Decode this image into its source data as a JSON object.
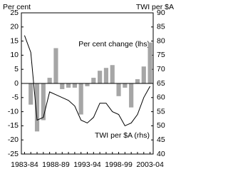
{
  "chart_data": {
    "type": "bar-line",
    "y_label": "Per cent",
    "y2_label": "TWI per $A",
    "categories": [
      "1983-84",
      null,
      null,
      null,
      null,
      "1988-89",
      null,
      null,
      null,
      null,
      "1993-94",
      null,
      null,
      null,
      null,
      "1998-99",
      null,
      null,
      null,
      null,
      "2003-04"
    ],
    "series": [
      {
        "name": "Per cent change (lhs)",
        "type": "bar",
        "color": "#a6a6a6",
        "values": [
          null,
          -7.5,
          -17,
          -13,
          2,
          12.5,
          -2,
          -1.5,
          -1.5,
          -11,
          -1,
          2,
          4.5,
          5.5,
          6.5,
          -4.5,
          -1.5,
          -8.5,
          1.5,
          6,
          14.5
        ]
      },
      {
        "name": "TWI per $A (rhs)",
        "type": "line",
        "axis": "y2",
        "color": "#000000",
        "values": [
          82,
          76,
          52,
          53,
          62,
          61,
          60,
          59,
          57,
          52,
          51,
          53,
          58,
          58,
          55,
          54,
          50,
          51,
          54,
          60,
          64
        ]
      }
    ],
    "ylim": [
      -25,
      25
    ],
    "yticks": [
      -25,
      -20,
      -15,
      -10,
      -5,
      0,
      5,
      10,
      15,
      20,
      25
    ],
    "y2lim": [
      40,
      90
    ],
    "y2ticks": [
      40,
      45,
      50,
      55,
      60,
      65,
      70,
      75,
      80,
      85,
      90
    ]
  }
}
